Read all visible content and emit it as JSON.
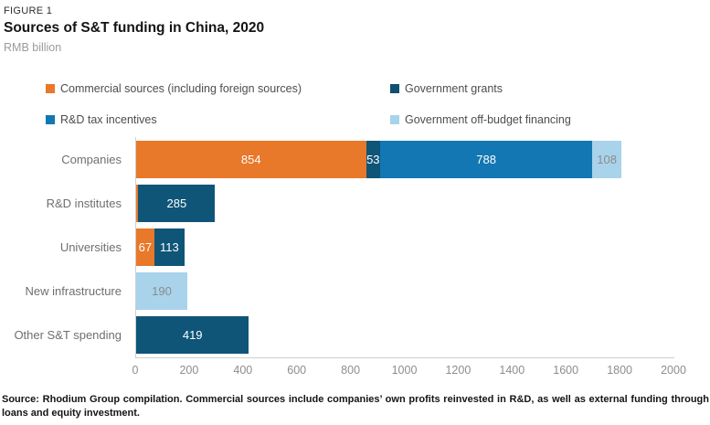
{
  "header": {
    "figure_label": "FIGURE 1",
    "title": "Sources of S&T funding in China, 2020",
    "subtitle": "RMB billion"
  },
  "legend": {
    "items": [
      {
        "label": "Commercial sources (including foreign sources)",
        "color": "#E8782A"
      },
      {
        "label": "Government grants",
        "color": "#0F4F70"
      },
      {
        "label": "R&D tax incentives",
        "color": "#1277B2"
      },
      {
        "label": "Government off-budget financing",
        "color": "#A8D3EB"
      }
    ]
  },
  "chart_data": {
    "type": "bar",
    "orientation": "horizontal",
    "stacked": true,
    "title": "Sources of S&T funding in China, 2020",
    "xlabel": "RMB billion",
    "ylabel": "",
    "xlim": [
      0,
      2000
    ],
    "ticks": [
      0,
      200,
      400,
      600,
      800,
      1000,
      1200,
      1400,
      1600,
      1800,
      2000
    ],
    "grid": false,
    "categories": [
      "Companies",
      "R&D institutes",
      "Universities",
      "New infrastructure",
      "Other S&T spending"
    ],
    "series": [
      {
        "name": "Commercial sources (including foreign sources)",
        "color": "#E8782A",
        "values": [
          854,
          8,
          67,
          0,
          0
        ],
        "labels": [
          "854",
          "",
          "67",
          "",
          ""
        ]
      },
      {
        "name": "Government grants",
        "color": "#0F5578",
        "values": [
          53,
          285,
          113,
          0,
          419
        ],
        "labels": [
          "53",
          "285",
          "113",
          "",
          "419"
        ]
      },
      {
        "name": "R&D tax incentives",
        "color": "#1277B2",
        "values": [
          788,
          0,
          0,
          0,
          0
        ],
        "labels": [
          "788",
          "",
          "",
          "",
          ""
        ]
      },
      {
        "name": "Government off-budget financing",
        "color": "#A8D3EB",
        "label_color": "#8C8C8C",
        "values": [
          108,
          0,
          0,
          190,
          0
        ],
        "labels": [
          "108",
          "",
          "",
          "190",
          ""
        ]
      }
    ]
  },
  "footer": {
    "line1": "Source: Rhodium Group compilation. Commercial sources include companies’ own profits reinvested in R&D, as well as external funding through",
    "line2": "loans and equity investment."
  }
}
